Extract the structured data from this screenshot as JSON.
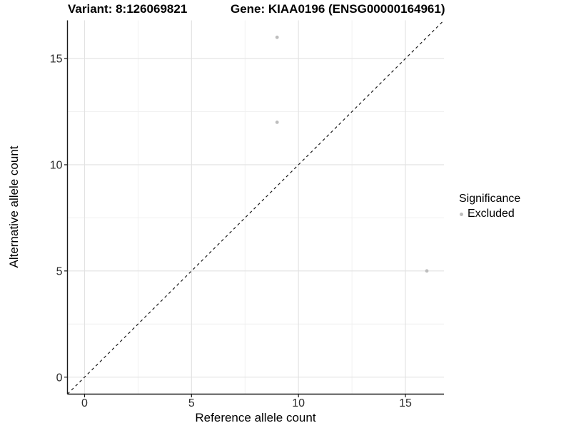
{
  "header": {
    "variant_title": "Variant: 8:126069821",
    "gene_title": "Gene: KIAA0196 (ENSG00000164961)"
  },
  "legend": {
    "title": "Significance",
    "items": [
      {
        "label": "Excluded",
        "color": "#bdbdbd"
      }
    ]
  },
  "chart_data": {
    "type": "scatter",
    "title": "Variant: 8:126069821  /  Gene: KIAA0196 (ENSG00000164961)",
    "xlabel": "Reference allele count",
    "ylabel": "Alternative allele count",
    "xlim": [
      -0.8,
      16.8
    ],
    "ylim": [
      -0.8,
      16.8
    ],
    "x_ticks": [
      0,
      5,
      10,
      15
    ],
    "y_ticks": [
      0,
      5,
      10,
      15
    ],
    "grid": "on",
    "minor_grid": "on",
    "legend_position": "right",
    "series": [
      {
        "name": "Excluded",
        "color": "#bdbdbd",
        "points": [
          {
            "x": 9,
            "y": 16
          },
          {
            "x": 9,
            "y": 12
          },
          {
            "x": 16,
            "y": 5
          }
        ]
      }
    ],
    "reference_line": {
      "kind": "abline",
      "slope": 1,
      "intercept": 0,
      "style": "dashed",
      "color": "#1a1a1a"
    },
    "style": {
      "point_color": "#bdbdbd",
      "point_radius": 2.4,
      "grid_major_color": "#e2e2e2",
      "grid_minor_color": "#efefef",
      "axis_color": "#1a1a1a",
      "tick_label_color": "#2b2b2b",
      "tick_label_size": 16
    }
  }
}
